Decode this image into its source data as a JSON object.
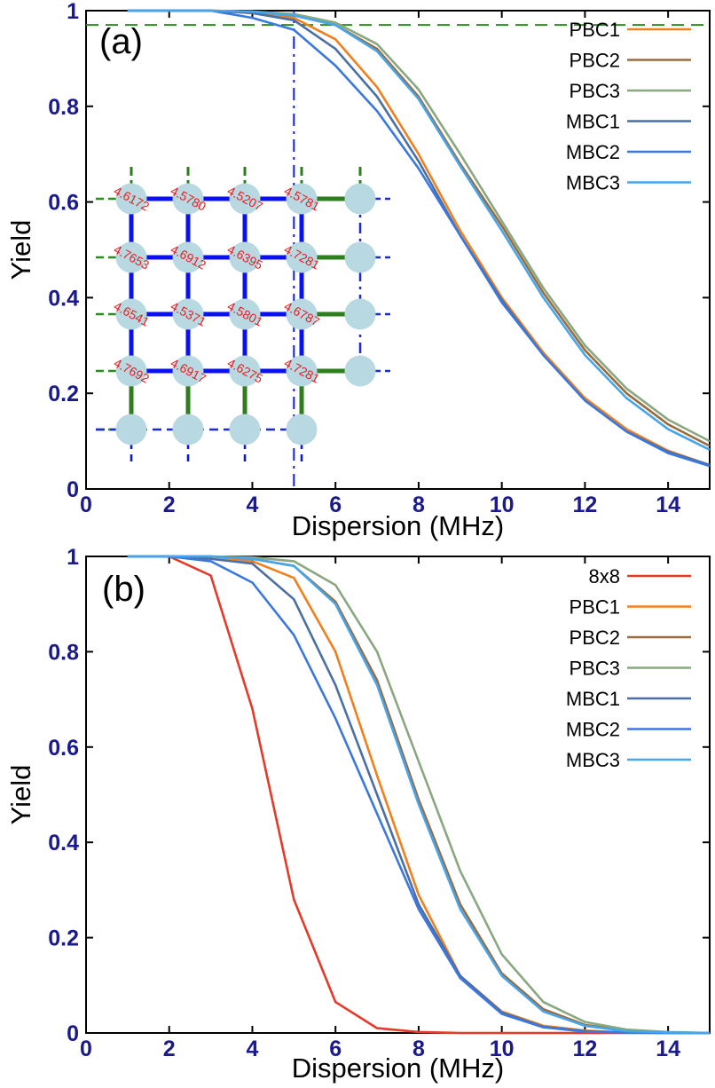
{
  "chart_data": [
    {
      "type": "line",
      "panel_label": "(a)",
      "xlabel": "Dispersion (MHz)",
      "ylabel": "Yield",
      "xlim": [
        0,
        15
      ],
      "ylim": [
        0,
        1
      ],
      "xticks": [
        0,
        2,
        4,
        6,
        8,
        10,
        12,
        14
      ],
      "yticks": [
        0,
        0.2,
        0.4,
        0.6,
        0.8,
        1
      ],
      "ytick_labels": [
        "0",
        "0.2",
        "0.4",
        "0.6",
        "0.8",
        "1"
      ],
      "legend_position": "top-right",
      "reference_lines": {
        "horizontal_y": 0.97,
        "vertical_x": 5
      },
      "series": [
        {
          "name": "PBC1",
          "color": "#f0801e",
          "x": [
            1,
            2,
            3,
            4,
            5,
            6,
            7,
            8,
            9,
            10,
            11,
            12,
            13,
            14,
            15
          ],
          "y": [
            1,
            1,
            1,
            0.995,
            0.985,
            0.94,
            0.84,
            0.7,
            0.54,
            0.4,
            0.285,
            0.19,
            0.125,
            0.08,
            0.05
          ]
        },
        {
          "name": "PBC2",
          "color": "#9a6b3e",
          "x": [
            1,
            2,
            3,
            4,
            5,
            6,
            7,
            8,
            9,
            10,
            11,
            12,
            13,
            14,
            15
          ],
          "y": [
            1,
            1,
            1,
            0.998,
            0.99,
            0.97,
            0.92,
            0.82,
            0.68,
            0.55,
            0.41,
            0.29,
            0.2,
            0.135,
            0.09
          ]
        },
        {
          "name": "PBC3",
          "color": "#8aa880",
          "x": [
            1,
            2,
            3,
            4,
            5,
            6,
            7,
            8,
            9,
            10,
            11,
            12,
            13,
            14,
            15
          ],
          "y": [
            1,
            1,
            1,
            0.998,
            0.993,
            0.975,
            0.93,
            0.835,
            0.7,
            0.56,
            0.42,
            0.3,
            0.21,
            0.145,
            0.1
          ]
        },
        {
          "name": "MBC1",
          "color": "#4a6fa5",
          "x": [
            1,
            2,
            3,
            4,
            5,
            6,
            7,
            8,
            9,
            10,
            11,
            12,
            13,
            14,
            15
          ],
          "y": [
            1,
            1,
            1,
            0.995,
            0.98,
            0.92,
            0.82,
            0.685,
            0.53,
            0.395,
            0.28,
            0.185,
            0.12,
            0.078,
            0.05
          ]
        },
        {
          "name": "MBC2",
          "color": "#3a78e0",
          "x": [
            1,
            2,
            3,
            4,
            5,
            6,
            7,
            8,
            9,
            10,
            11,
            12,
            13,
            14,
            15
          ],
          "y": [
            1,
            1,
            1,
            0.985,
            0.96,
            0.885,
            0.79,
            0.67,
            0.53,
            0.39,
            0.28,
            0.185,
            0.12,
            0.075,
            0.048
          ]
        },
        {
          "name": "MBC3",
          "color": "#45a6ec",
          "x": [
            1,
            2,
            3,
            4,
            5,
            6,
            7,
            8,
            9,
            10,
            11,
            12,
            13,
            14,
            15
          ],
          "y": [
            1,
            1,
            1,
            0.998,
            0.99,
            0.97,
            0.915,
            0.815,
            0.675,
            0.54,
            0.4,
            0.28,
            0.19,
            0.125,
            0.082
          ]
        }
      ],
      "inset": {
        "rows": [
          [
            "4.6172",
            "4.5780",
            "4.5207",
            "4.5781"
          ],
          [
            "4.7653",
            "4.6912",
            "4.6395",
            "4.7281"
          ],
          [
            "4.6541",
            "4.5371",
            "4.5801",
            "4.6787"
          ],
          [
            "4.7692",
            "4.6917",
            "4.6275",
            "4.7281"
          ]
        ]
      }
    },
    {
      "type": "line",
      "panel_label": "(b)",
      "xlabel": "Dispersion (MHz)",
      "ylabel": "Yield",
      "xlim": [
        0,
        15
      ],
      "ylim": [
        0,
        1
      ],
      "xticks": [
        0,
        2,
        4,
        6,
        8,
        10,
        12,
        14
      ],
      "yticks": [
        0,
        0.2,
        0.4,
        0.6,
        0.8,
        1
      ],
      "ytick_labels": [
        "0",
        "0.2",
        "0.4",
        "0.6",
        "0.8",
        "1"
      ],
      "legend_position": "top-right",
      "series": [
        {
          "name": "8x8",
          "color": "#e53a2a",
          "x": [
            1,
            2,
            3,
            4,
            5,
            6,
            7,
            8,
            9,
            10,
            11,
            12,
            13,
            14,
            15
          ],
          "y": [
            1,
            1,
            0.96,
            0.68,
            0.28,
            0.065,
            0.01,
            0.002,
            0,
            0,
            0,
            0,
            0,
            0,
            0
          ]
        },
        {
          "name": "PBC1",
          "color": "#f0801e",
          "x": [
            1,
            2,
            3,
            4,
            5,
            6,
            7,
            8,
            9,
            10,
            11,
            12,
            13,
            14,
            15
          ],
          "y": [
            1,
            1,
            1,
            0.99,
            0.955,
            0.8,
            0.54,
            0.29,
            0.12,
            0.045,
            0.015,
            0.005,
            0.001,
            0,
            0
          ]
        },
        {
          "name": "PBC2",
          "color": "#9a6b3e",
          "x": [
            1,
            2,
            3,
            4,
            5,
            6,
            7,
            8,
            9,
            10,
            11,
            12,
            13,
            14,
            15
          ],
          "y": [
            1,
            1,
            1,
            0.995,
            0.98,
            0.905,
            0.74,
            0.49,
            0.27,
            0.125,
            0.05,
            0.017,
            0.005,
            0.001,
            0
          ]
        },
        {
          "name": "PBC3",
          "color": "#8aa880",
          "x": [
            1,
            2,
            3,
            4,
            5,
            6,
            7,
            8,
            9,
            10,
            11,
            12,
            13,
            14,
            15
          ],
          "y": [
            1,
            1,
            1,
            0.998,
            0.99,
            0.94,
            0.8,
            0.57,
            0.34,
            0.165,
            0.065,
            0.023,
            0.007,
            0.002,
            0
          ]
        },
        {
          "name": "MBC1",
          "color": "#4a6fa5",
          "x": [
            1,
            2,
            3,
            4,
            5,
            6,
            7,
            8,
            9,
            10,
            11,
            12,
            13,
            14,
            15
          ],
          "y": [
            1,
            1,
            0.995,
            0.985,
            0.91,
            0.73,
            0.5,
            0.27,
            0.12,
            0.043,
            0.013,
            0.004,
            0.001,
            0,
            0
          ]
        },
        {
          "name": "MBC2",
          "color": "#3a78e0",
          "x": [
            1,
            2,
            3,
            4,
            5,
            6,
            7,
            8,
            9,
            10,
            11,
            12,
            13,
            14,
            15
          ],
          "y": [
            1,
            1,
            0.99,
            0.945,
            0.835,
            0.66,
            0.46,
            0.26,
            0.115,
            0.04,
            0.012,
            0.003,
            0.001,
            0,
            0
          ]
        },
        {
          "name": "MBC3",
          "color": "#45a6ec",
          "x": [
            1,
            2,
            3,
            4,
            5,
            6,
            7,
            8,
            9,
            10,
            11,
            12,
            13,
            14,
            15
          ],
          "y": [
            1,
            1,
            1,
            0.995,
            0.98,
            0.9,
            0.73,
            0.48,
            0.26,
            0.12,
            0.045,
            0.015,
            0.004,
            0.001,
            0
          ]
        }
      ]
    }
  ]
}
